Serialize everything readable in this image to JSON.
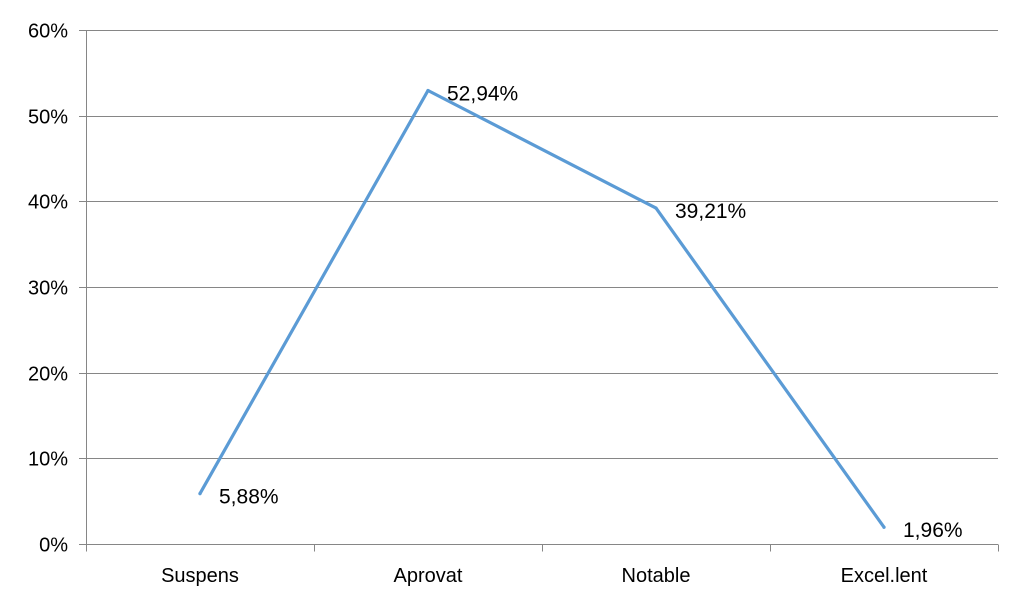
{
  "chart_data": {
    "type": "line",
    "title": "",
    "xlabel": "",
    "ylabel": "",
    "categories": [
      "Suspens",
      "Aprovat",
      "Notable",
      "Excel.lent"
    ],
    "series": [
      {
        "values": [
          5.88,
          52.94,
          39.21,
          1.96
        ],
        "data_labels": [
          "5,88%",
          "52,94%",
          "39,21%",
          "1,96%"
        ]
      }
    ],
    "ylim": [
      0,
      60
    ],
    "yticks": [
      0,
      10,
      20,
      30,
      40,
      50,
      60
    ],
    "ytick_labels": [
      "0%",
      "10%",
      "20%",
      "30%",
      "40%",
      "50%",
      "60%"
    ],
    "grid": "horizontal",
    "legend": "none",
    "colors": {
      "line": "#5B9BD5",
      "grid": "#868686",
      "axis": "#868686",
      "text": "#000000"
    }
  }
}
